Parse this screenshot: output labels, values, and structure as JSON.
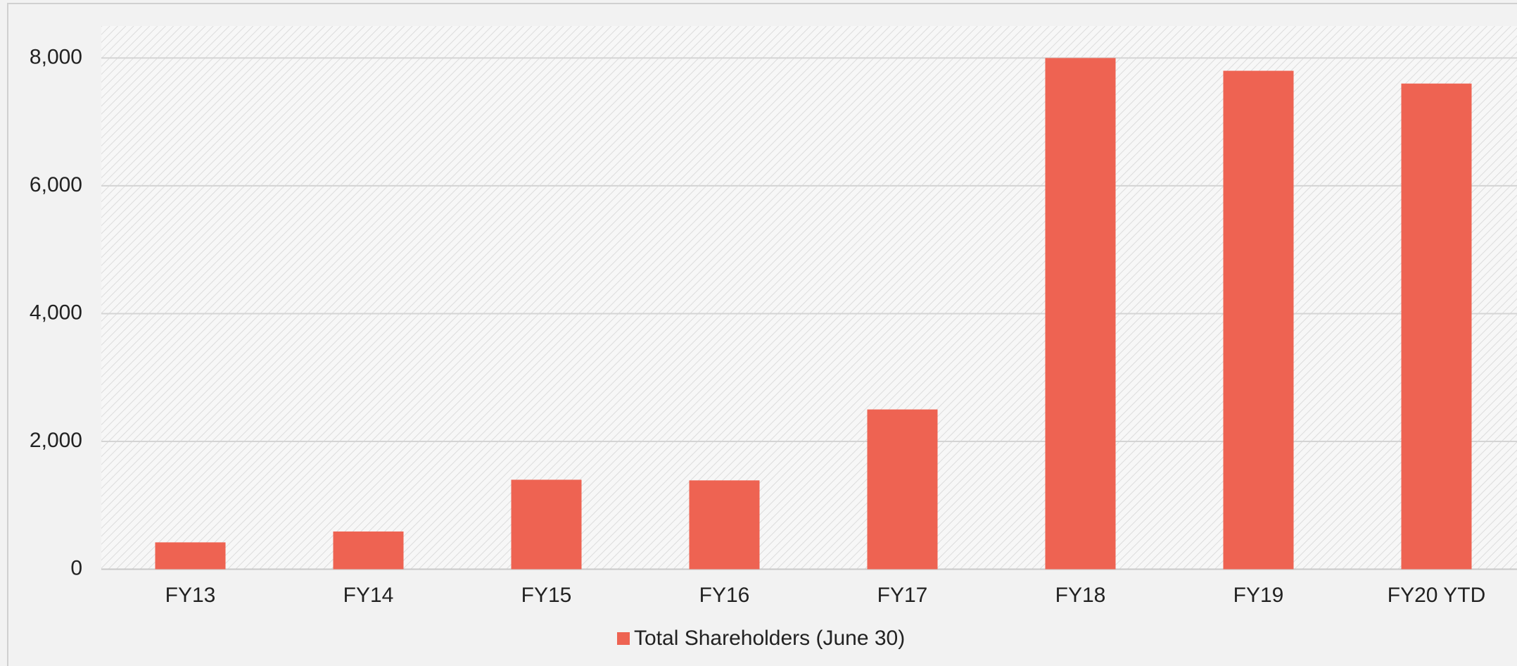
{
  "chart_data": {
    "type": "bar",
    "categories": [
      "FY13",
      "FY14",
      "FY15",
      "FY16",
      "FY17",
      "FY18",
      "FY19",
      "FY20 YTD"
    ],
    "series": [
      {
        "name": "Total Shareholders (June 30)",
        "color": "#ee6352",
        "values": [
          420,
          590,
          1400,
          1390,
          2500,
          8000,
          7800,
          7600
        ]
      }
    ],
    "ylim": [
      0,
      8500
    ],
    "yticks": [
      0,
      {
        "value": 2000,
        "label": "2,000"
      },
      {
        "value": 4000,
        "label": "4,000"
      },
      {
        "value": 6000,
        "label": "6,000"
      },
      {
        "value": 8000,
        "label": "8,000"
      }
    ],
    "grid": true,
    "legend": "bottom"
  }
}
